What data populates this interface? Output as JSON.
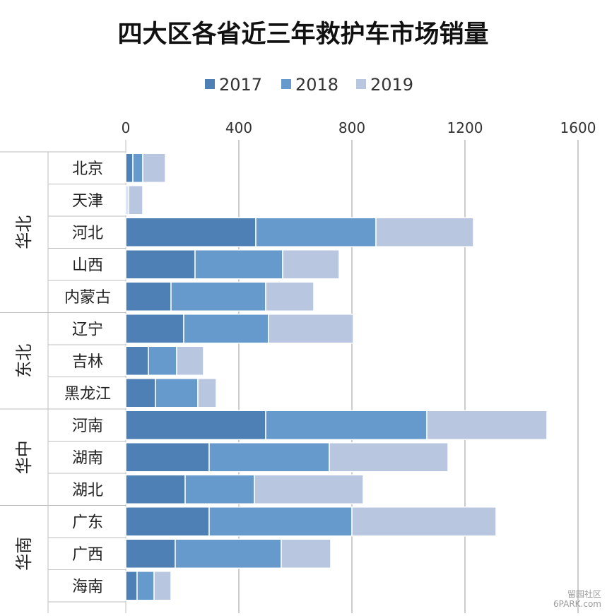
{
  "chart_data": {
    "type": "bar",
    "orientation": "horizontal",
    "stacked": true,
    "title": "四大区各省近三年救护车市场销量",
    "legend_position": "top",
    "xlim": [
      0,
      1600
    ],
    "x_ticks": [
      "0",
      "400",
      "800",
      "1200",
      "1600"
    ],
    "x_tick_values": [
      0,
      400,
      800,
      1200,
      1600
    ],
    "grid": true,
    "groups": [
      {
        "name": "华北",
        "categories": [
          "北京",
          "天津",
          "河北",
          "山西",
          "内蒙古"
        ]
      },
      {
        "name": "东北",
        "categories": [
          "辽宁",
          "吉林",
          "黑龙江"
        ]
      },
      {
        "name": "华中",
        "categories": [
          "河南",
          "湖南",
          "湖北"
        ]
      },
      {
        "name": "华南",
        "categories": [
          "广东",
          "广西",
          "海南"
        ]
      }
    ],
    "categories": [
      "北京",
      "天津",
      "河北",
      "山西",
      "内蒙古",
      "辽宁",
      "吉林",
      "黑龙江",
      "河南",
      "湖南",
      "湖北",
      "广东",
      "广西",
      "海南"
    ],
    "series": [
      {
        "name": "2017",
        "color": "#4e7fb5",
        "values": [
          25,
          5,
          460,
          245,
          160,
          205,
          80,
          105,
          495,
          295,
          210,
          295,
          175,
          40
        ]
      },
      {
        "name": "2018",
        "color": "#6699cc",
        "values": [
          35,
          5,
          425,
          310,
          335,
          300,
          100,
          150,
          570,
          425,
          245,
          505,
          375,
          60
        ]
      },
      {
        "name": "2019",
        "color": "#b9c6df",
        "values": [
          80,
          50,
          345,
          200,
          170,
          300,
          95,
          65,
          425,
          420,
          385,
          510,
          175,
          60
        ]
      }
    ]
  },
  "watermark": {
    "line1": "留园社区",
    "line2": "6PARK.com"
  }
}
